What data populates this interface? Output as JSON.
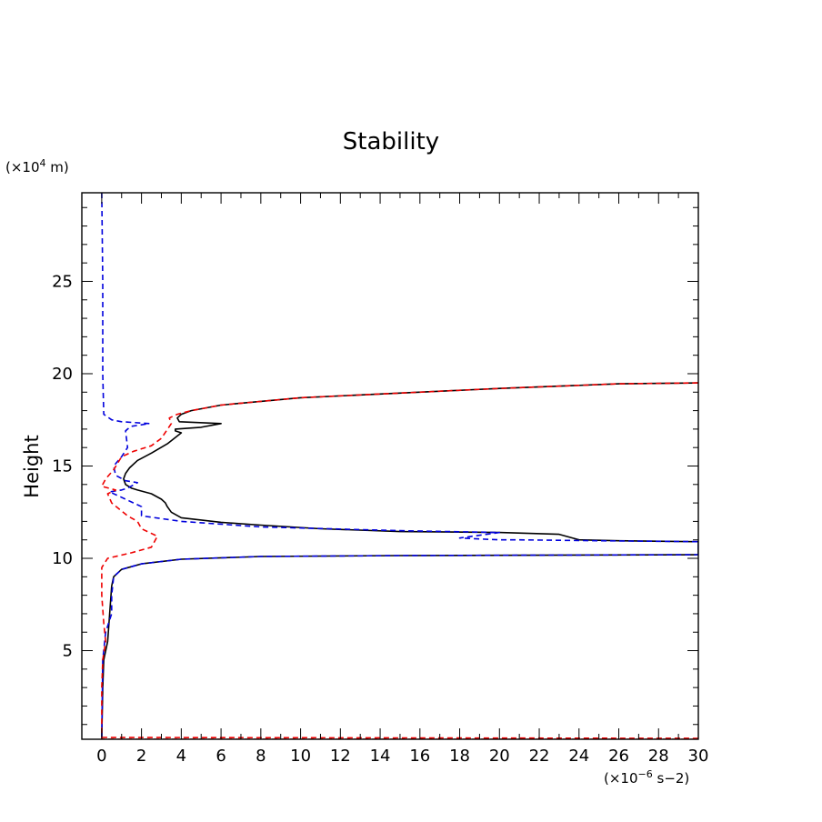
{
  "chart_data": {
    "type": "line",
    "title": "Stability",
    "xlabel": "",
    "ylabel": "Height",
    "x_unit": "(×10",
    "x_unit_exp": "−6",
    "x_unit_rest": " s−2)",
    "y_unit": "(×10",
    "y_unit_exp": "4",
    "y_unit_rest": " m)",
    "xlim": [
      -1,
      30
    ],
    "ylim": [
      0.2,
      29.8
    ],
    "x_ticks": [
      0,
      2,
      4,
      6,
      8,
      10,
      12,
      14,
      16,
      18,
      20,
      22,
      24,
      26,
      28,
      30
    ],
    "x_tick_labels": [
      "0",
      "2",
      "4",
      "6",
      "8",
      "10",
      "12",
      "14",
      "16",
      "18",
      "20",
      "22",
      "24",
      "26",
      "28",
      "30"
    ],
    "y_ticks": [
      5,
      10,
      15,
      20,
      25
    ],
    "y_tick_labels": [
      "5",
      "10",
      "15",
      "20",
      "25"
    ],
    "grid": false,
    "series": [
      {
        "color": "#000000",
        "dash": "solid",
        "points": [
          [
            0.0,
            0.3
          ],
          [
            0.05,
            3.0
          ],
          [
            0.1,
            4.5
          ],
          [
            0.3,
            5.5
          ],
          [
            0.4,
            7.0
          ],
          [
            0.5,
            8.5
          ],
          [
            0.6,
            9.0
          ],
          [
            1.0,
            9.4
          ],
          [
            2.0,
            9.7
          ],
          [
            4.0,
            9.95
          ],
          [
            8.0,
            10.1
          ],
          [
            15.0,
            10.15
          ],
          [
            30.0,
            10.2
          ],
          [
            30.0,
            10.9
          ],
          [
            26.0,
            10.95
          ],
          [
            24.0,
            11.0
          ],
          [
            23.0,
            11.3
          ],
          [
            20.0,
            11.4
          ],
          [
            15.0,
            11.45
          ],
          [
            11.0,
            11.6
          ],
          [
            8.0,
            11.8
          ],
          [
            6.0,
            11.95
          ],
          [
            4.0,
            12.2
          ],
          [
            3.5,
            12.5
          ],
          [
            3.3,
            12.8
          ],
          [
            3.2,
            13.0
          ],
          [
            3.0,
            13.2
          ],
          [
            2.5,
            13.5
          ],
          [
            1.8,
            13.7
          ],
          [
            1.5,
            13.8
          ],
          [
            1.2,
            14.0
          ],
          [
            1.1,
            14.3
          ],
          [
            1.2,
            14.6
          ],
          [
            1.4,
            14.9
          ],
          [
            1.8,
            15.3
          ],
          [
            2.5,
            15.7
          ],
          [
            3.3,
            16.2
          ],
          [
            4.0,
            16.8
          ],
          [
            3.7,
            16.9
          ],
          [
            3.7,
            17.0
          ],
          [
            5.0,
            17.1
          ],
          [
            6.0,
            17.3
          ],
          [
            3.9,
            17.4
          ],
          [
            3.8,
            17.6
          ],
          [
            4.0,
            17.8
          ],
          [
            4.5,
            18.0
          ],
          [
            6.0,
            18.3
          ],
          [
            8.0,
            18.5
          ],
          [
            10.0,
            18.7
          ],
          [
            14.0,
            18.9
          ],
          [
            20.0,
            19.2
          ],
          [
            26.0,
            19.45
          ],
          [
            30.0,
            19.5
          ]
        ]
      },
      {
        "color": "#0000dd",
        "dash": "dashed",
        "points": [
          [
            0.0,
            29.8
          ],
          [
            0.05,
            25.0
          ],
          [
            0.05,
            20.0
          ],
          [
            0.1,
            17.8
          ],
          [
            0.5,
            17.5
          ],
          [
            1.0,
            17.4
          ],
          [
            2.4,
            17.3
          ],
          [
            1.5,
            17.15
          ],
          [
            1.3,
            17.0
          ],
          [
            1.2,
            16.9
          ],
          [
            1.3,
            16.0
          ],
          [
            1.0,
            15.5
          ],
          [
            0.6,
            15.0
          ],
          [
            0.7,
            14.5
          ],
          [
            1.2,
            14.2
          ],
          [
            1.8,
            14.1
          ],
          [
            1.3,
            13.8
          ],
          [
            1.0,
            13.7
          ],
          [
            0.4,
            13.6
          ],
          [
            1.2,
            13.2
          ],
          [
            2.0,
            12.8
          ],
          [
            2.0,
            12.3
          ],
          [
            4.0,
            12.0
          ],
          [
            8.0,
            11.7
          ],
          [
            15.0,
            11.5
          ],
          [
            20.0,
            11.4
          ],
          [
            18.0,
            11.1
          ],
          [
            20.0,
            11.0
          ],
          [
            21.0,
            11.0
          ],
          [
            25.0,
            10.95
          ],
          [
            30.0,
            10.9
          ],
          [
            30.0,
            10.2
          ],
          [
            15.0,
            10.15
          ],
          [
            8.0,
            10.1
          ],
          [
            4.0,
            9.95
          ],
          [
            2.0,
            9.7
          ],
          [
            1.0,
            9.4
          ],
          [
            0.6,
            9.0
          ],
          [
            0.5,
            8.0
          ],
          [
            0.5,
            7.0
          ],
          [
            0.2,
            6.0
          ],
          [
            0.05,
            4.5
          ],
          [
            0.0,
            0.3
          ]
        ]
      },
      {
        "color": "#ee0000",
        "dash": "dashed",
        "points": [
          [
            0.0,
            0.3
          ],
          [
            30.0,
            0.25
          ],
          [
            30.0,
            0.2
          ],
          [
            0.0,
            0.2
          ],
          [
            0.0,
            3.0
          ],
          [
            0.05,
            4.5
          ],
          [
            0.2,
            5.5
          ],
          [
            0.1,
            6.5
          ],
          [
            0.0,
            8.0
          ],
          [
            0.0,
            9.5
          ],
          [
            0.3,
            10.0
          ],
          [
            1.5,
            10.3
          ],
          [
            2.5,
            10.6
          ],
          [
            2.8,
            11.2
          ],
          [
            2.0,
            11.6
          ],
          [
            1.8,
            12.0
          ],
          [
            1.3,
            12.3
          ],
          [
            0.5,
            13.0
          ],
          [
            0.3,
            13.5
          ],
          [
            0.7,
            13.7
          ],
          [
            0.0,
            13.9
          ],
          [
            0.2,
            14.3
          ],
          [
            0.6,
            14.8
          ],
          [
            1.0,
            15.5
          ],
          [
            1.6,
            15.8
          ],
          [
            2.5,
            16.1
          ],
          [
            3.0,
            16.5
          ],
          [
            3.5,
            17.3
          ],
          [
            3.4,
            17.6
          ],
          [
            3.8,
            17.8
          ],
          [
            4.5,
            18.0
          ],
          [
            6.0,
            18.3
          ],
          [
            8.0,
            18.5
          ],
          [
            10.0,
            18.7
          ],
          [
            14.0,
            18.9
          ],
          [
            20.0,
            19.2
          ],
          [
            26.0,
            19.45
          ],
          [
            30.0,
            19.5
          ]
        ]
      }
    ]
  }
}
